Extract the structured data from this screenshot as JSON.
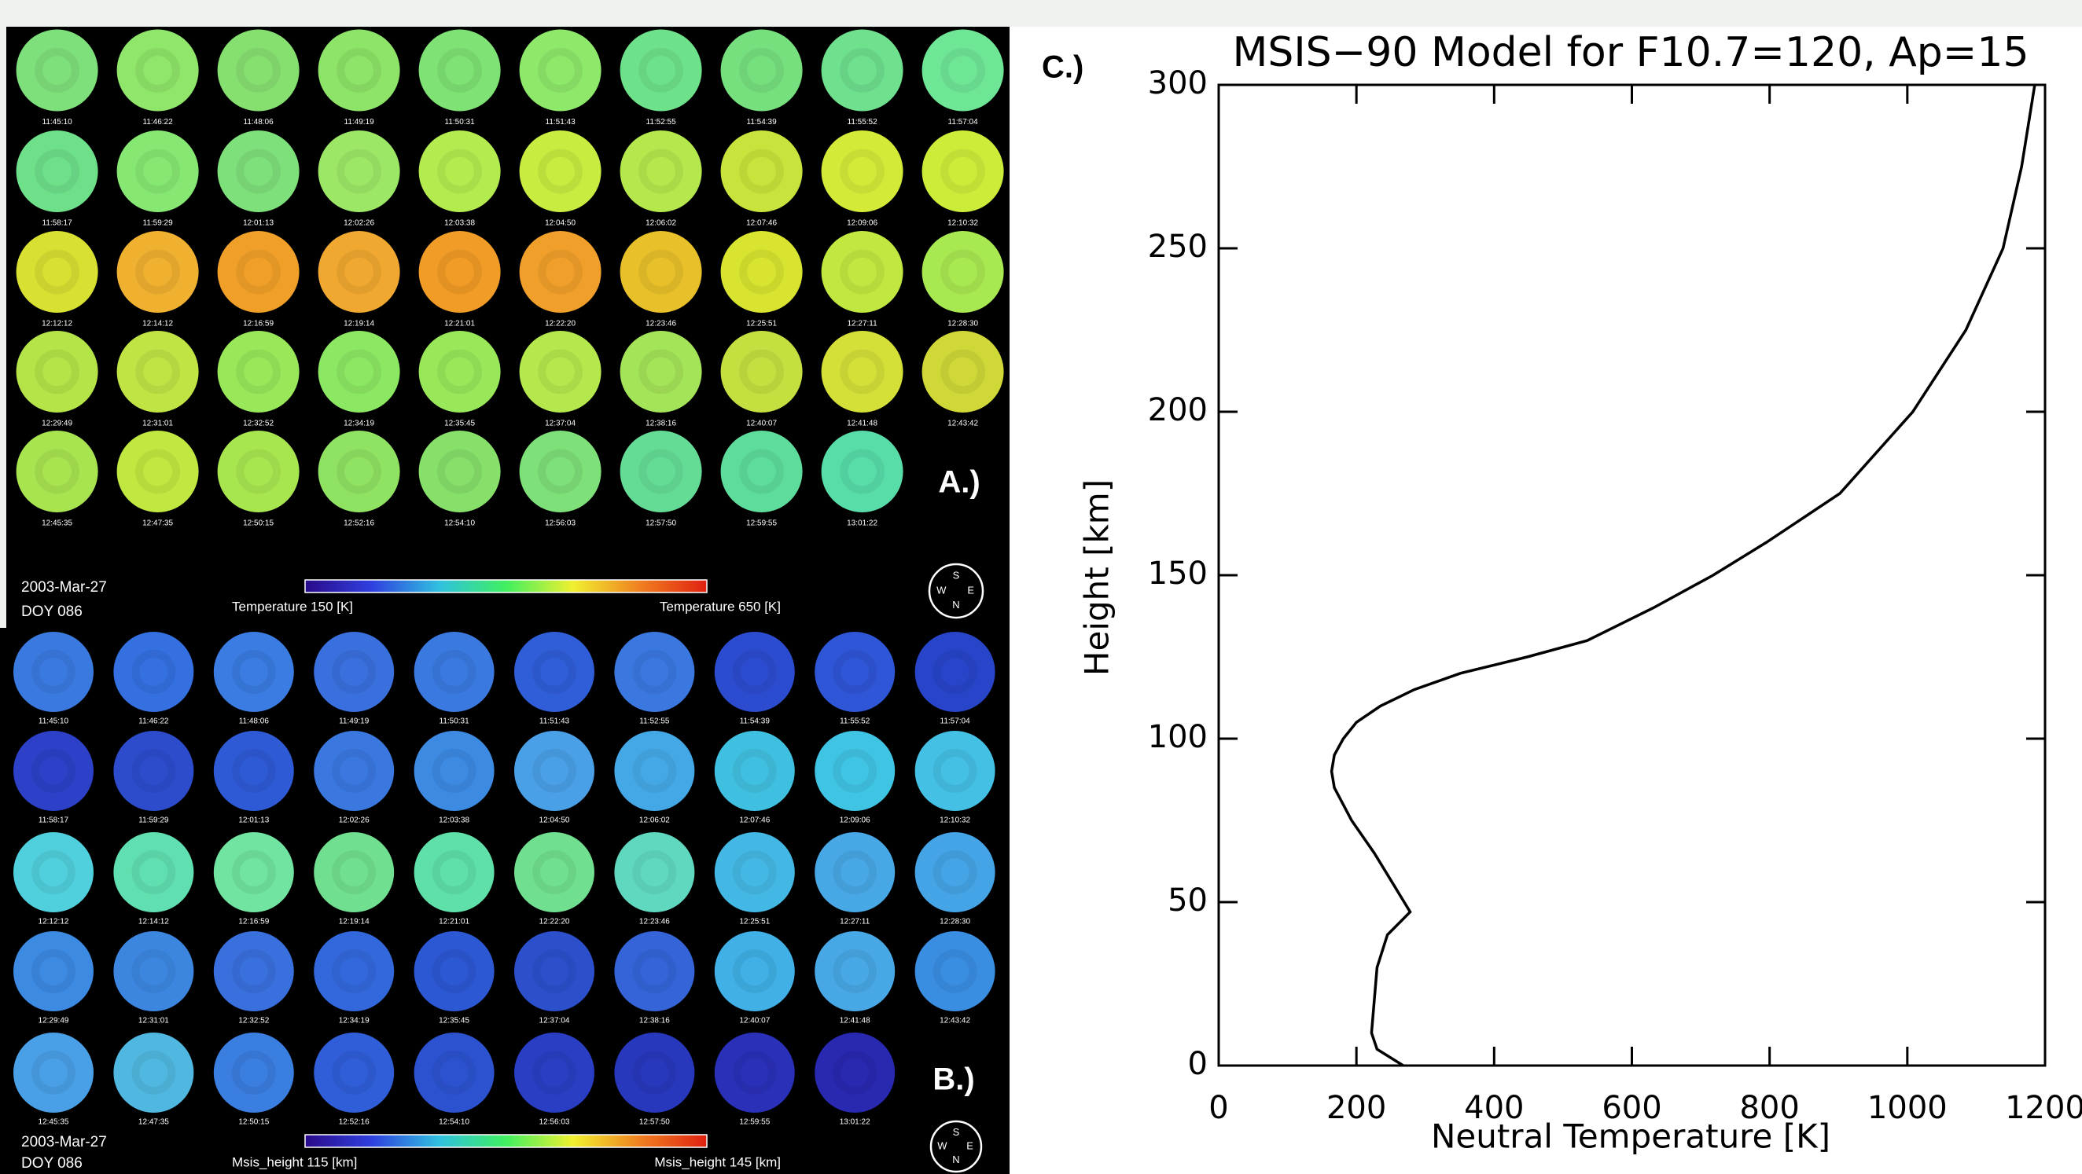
{
  "times": [
    "11:45:10",
    "11:46:22",
    "11:48:06",
    "11:49:19",
    "11:50:31",
    "11:51:43",
    "11:52:55",
    "11:54:39",
    "11:55:52",
    "11:57:04",
    "11:58:17",
    "11:59:29",
    "12:01:13",
    "12:02:26",
    "12:03:38",
    "12:04:50",
    "12:06:02",
    "12:07:46",
    "12:09:06",
    "12:10:32",
    "12:12:12",
    "12:14:12",
    "12:16:59",
    "12:19:14",
    "12:21:01",
    "12:22:20",
    "12:23:46",
    "12:25:51",
    "12:27:11",
    "12:28:30",
    "12:29:49",
    "12:31:01",
    "12:32:52",
    "12:34:19",
    "12:35:45",
    "12:37:04",
    "12:38:16",
    "12:40:07",
    "12:41:48",
    "12:43:42",
    "12:45:35",
    "12:47:35",
    "12:50:15",
    "12:52:16",
    "12:54:10",
    "12:56:03",
    "12:57:50",
    "12:59:55",
    "13:01:22"
  ],
  "compass": [
    "S",
    "W",
    "E",
    "N"
  ],
  "colormap": [
    "#2a0a8a",
    "#3040e0",
    "#30c0e0",
    "#40f060",
    "#f0f030",
    "#f08020",
    "#e02010"
  ],
  "panels": [
    {
      "label": "A.)",
      "date": "2003-Mar-27",
      "doy": "DOY 086",
      "scale_min": "Temperature 150 [K]",
      "scale_max": "Temperature 650 [K]",
      "colors": [
        "#7ee07a",
        "#8fe66a",
        "#86e070",
        "#8de468",
        "#7ee274",
        "#8ee86a",
        "#6ee28a",
        "#76e07e",
        "#6ee08e",
        "#6ee696",
        "#6ee08a",
        "#86e872",
        "#7ee07a",
        "#9ce866",
        "#b4ec50",
        "#c8ec40",
        "#b4e84c",
        "#c8e43c",
        "#d4ea38",
        "#ccec3a",
        "#d8e032",
        "#f0b030",
        "#f0a028",
        "#f0a830",
        "#f09c26",
        "#f0a02a",
        "#e8c02a",
        "#d8e430",
        "#c0e840",
        "#a8e850",
        "#b4e448",
        "#c0e444",
        "#98e85a",
        "#8ce862",
        "#98e85a",
        "#b4e84c",
        "#a4e458",
        "#c4e040",
        "#d4e038",
        "#d0d838",
        "#a8e450",
        "#c0e840",
        "#a8e650",
        "#90e262",
        "#86e06a",
        "#7ee078",
        "#64dc96",
        "#5edc9c",
        "#58dca8"
      ]
    },
    {
      "label": "B.)",
      "date": "2003-Mar-27",
      "doy": "DOY 086",
      "scale_min": "Msis_height 115 [km]",
      "scale_max": "Msis_height 145 [km]",
      "colors": [
        "#3a7ae0",
        "#3470e0",
        "#3a7ce2",
        "#3a70de",
        "#3a7ae0",
        "#305ed8",
        "#3a78e0",
        "#2c4cd0",
        "#2e56d6",
        "#2844c8",
        "#2c40c8",
        "#2c4ccc",
        "#2e5ad6",
        "#3a78e0",
        "#3c8ae2",
        "#4aa0e6",
        "#44a8e6",
        "#40c0e0",
        "#40c4e4",
        "#44c0e4",
        "#50d0dc",
        "#60e0b0",
        "#70e4a0",
        "#70e090",
        "#5ee0a8",
        "#70e090",
        "#60d8c0",
        "#44b8e4",
        "#48a8e6",
        "#44a4e6",
        "#3c8ae2",
        "#3c86e0",
        "#3a70de",
        "#3268dc",
        "#2c58d4",
        "#2c50cc",
        "#3464d8",
        "#40b0e6",
        "#48a8e6",
        "#3a8ee2",
        "#4aa0e6",
        "#50b8e0",
        "#3a7ee0",
        "#305ed8",
        "#2c52d0",
        "#2a3ec4",
        "#2838bc",
        "#2a30b8",
        "#2828b0"
      ]
    }
  ],
  "chart_data": {
    "type": "line",
    "panel_label": "C.)",
    "title": "MSIS−90 Model for F10.7=120, Ap=15",
    "x_label": "Neutral Temperature [K]",
    "y_label": "Height [km]",
    "xlim": [
      0,
      1200
    ],
    "ylim": [
      0,
      300
    ],
    "xticks": [
      0,
      200,
      400,
      600,
      800,
      1000,
      1200
    ],
    "yticks": [
      0,
      50,
      100,
      150,
      200,
      250,
      300
    ],
    "series": [
      {
        "color": "#000000",
        "x": [
          268,
          230,
          222,
          226,
          230,
          245,
          278,
          255,
          226,
          193,
          168,
          164,
          168,
          181,
          200,
          235,
          284,
          351,
          448,
          535,
          631,
          718,
          795,
          902,
          1008,
          1085,
          1139,
          1166,
          1185
        ],
        "y": [
          0,
          5,
          10,
          20,
          30,
          40,
          47,
          55,
          65,
          75,
          85,
          90,
          95,
          100,
          105,
          110,
          115,
          120,
          125,
          130,
          140,
          150,
          160,
          175,
          200,
          225,
          250,
          275,
          300
        ]
      }
    ]
  }
}
